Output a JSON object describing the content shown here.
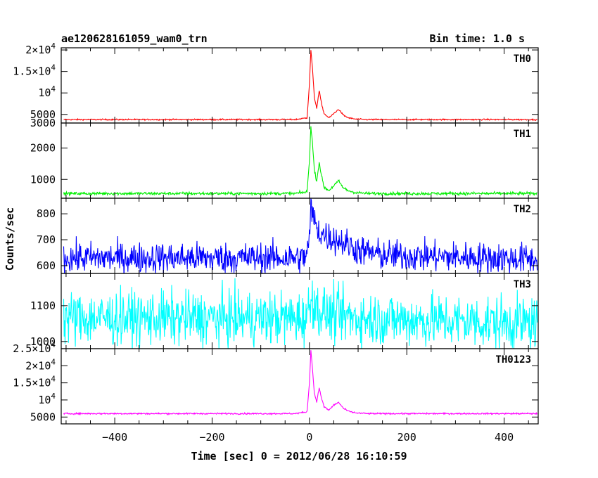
{
  "chart_data": {
    "type": "line",
    "title": "ae120628161059_wam0_trn",
    "bin_time_label": "Bin time: 1.0 s",
    "xlabel": "Time [sec] 0 = 2012/06/28 16:10:59",
    "ylabel": "Counts/sec",
    "xlim": [
      -510,
      470
    ],
    "x_ticks": [
      -400,
      -200,
      0,
      200,
      400
    ],
    "x_tick_labels": [
      "−400",
      "−200",
      "0",
      "200",
      "400"
    ],
    "panels": [
      {
        "name": "TH0",
        "color": "#ff0000",
        "ylim": [
          3000,
          20500
        ],
        "y_ticks": [
          3000,
          5000,
          10000,
          15000,
          20000
        ],
        "y_tick_labels": [
          {
            "base": "3000",
            "exp": ""
          },
          {
            "base": "5000",
            "exp": ""
          },
          {
            "base": "10",
            "exp": "4"
          },
          {
            "base": "1.5×10",
            "exp": "4"
          },
          {
            "base": "2×10",
            "exp": "4"
          }
        ],
        "background": 3800,
        "noise": 80,
        "x": [
          -510,
          -30,
          -5,
          0,
          3,
          6,
          10,
          15,
          20,
          25,
          30,
          40,
          50,
          60,
          70,
          80,
          95,
          120,
          470
        ],
        "y": [
          3800,
          3800,
          4200,
          12000,
          20000,
          16000,
          9000,
          6500,
          10500,
          7500,
          5200,
          4200,
          5200,
          6200,
          4800,
          4200,
          3900,
          3800,
          3800
        ]
      },
      {
        "name": "TH1",
        "color": "#00ee00",
        "ylim": [
          400,
          2800
        ],
        "y_ticks": [
          1000,
          2000
        ],
        "y_tick_labels": [
          {
            "base": "1000",
            "exp": ""
          },
          {
            "base": "2000",
            "exp": ""
          }
        ],
        "background": 550,
        "noise": 25,
        "x": [
          -510,
          -30,
          -5,
          0,
          3,
          6,
          10,
          15,
          20,
          25,
          30,
          40,
          50,
          60,
          70,
          80,
          95,
          120,
          470
        ],
        "y": [
          550,
          550,
          600,
          1600,
          2700,
          2200,
          1300,
          950,
          1550,
          1100,
          750,
          650,
          800,
          950,
          720,
          640,
          580,
          550,
          550
        ]
      },
      {
        "name": "TH2",
        "color": "#0000ff",
        "ylim": [
          570,
          860
        ],
        "y_ticks": [
          600,
          700,
          800
        ],
        "y_tick_labels": [
          {
            "base": "600",
            "exp": ""
          },
          {
            "base": "700",
            "exp": ""
          },
          {
            "base": "800",
            "exp": ""
          }
        ],
        "background": 630,
        "noise": 30,
        "x": [
          -510,
          -10,
          0,
          3,
          10,
          20,
          40,
          70,
          100,
          150,
          470
        ],
        "y": [
          630,
          630,
          690,
          830,
          770,
          730,
          710,
          690,
          660,
          640,
          625
        ]
      },
      {
        "name": "TH3",
        "color": "#00ffff",
        "ylim": [
          980,
          1190
        ],
        "y_ticks": [
          1000,
          1100
        ],
        "y_tick_labels": [
          {
            "base": "1000",
            "exp": ""
          },
          {
            "base": "1100",
            "exp": ""
          }
        ],
        "background": 1060,
        "noise": 38,
        "x": [
          -510,
          -10,
          0,
          5,
          15,
          40,
          100,
          470
        ],
        "y": [
          1065,
          1065,
          1090,
          1130,
          1090,
          1075,
          1065,
          1050
        ]
      },
      {
        "name": "TH0123",
        "color": "#ff00ff",
        "ylim": [
          3000,
          25000
        ],
        "y_ticks": [
          5000,
          10000,
          15000,
          20000,
          25000
        ],
        "y_tick_labels": [
          {
            "base": "5000",
            "exp": ""
          },
          {
            "base": "10",
            "exp": "4"
          },
          {
            "base": "1.5×10",
            "exp": "4"
          },
          {
            "base": "2×10",
            "exp": "4"
          },
          {
            "base": "2.5×10",
            "exp": "4"
          }
        ],
        "background": 6000,
        "noise": 110,
        "x": [
          -510,
          -30,
          -5,
          0,
          3,
          6,
          10,
          15,
          20,
          25,
          30,
          40,
          50,
          60,
          70,
          80,
          95,
          120,
          470
        ],
        "y": [
          6000,
          6000,
          6500,
          15000,
          24500,
          19500,
          12000,
          9500,
          13500,
          10500,
          8000,
          7000,
          8500,
          9300,
          7500,
          6700,
          6200,
          6000,
          6000
        ]
      }
    ]
  }
}
